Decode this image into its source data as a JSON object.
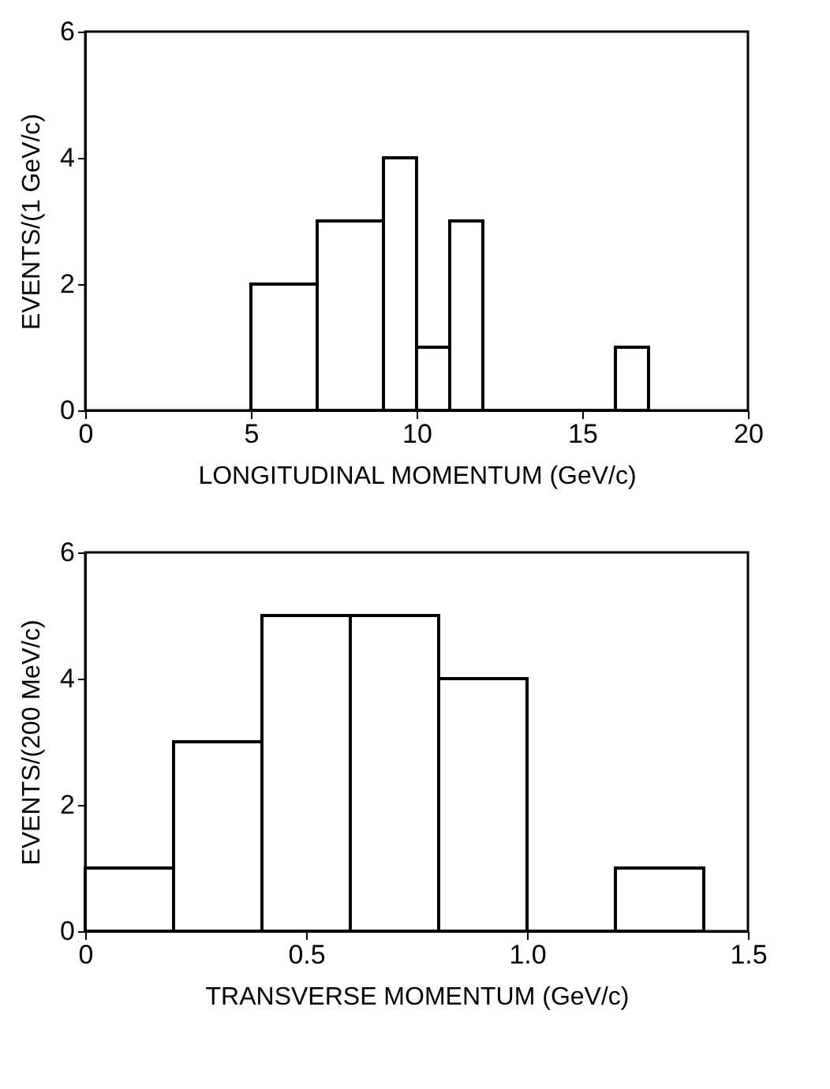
{
  "chart_data": [
    {
      "type": "histogram",
      "xlabel": "LONGITUDINAL  MOMENTUM   (GeV/c)",
      "ylabel": "EVENTS/(1 GeV/c)",
      "bins": [
        5,
        7,
        9,
        10,
        11,
        12,
        16,
        17
      ],
      "values": [
        2,
        3,
        4,
        1,
        3,
        0,
        1
      ],
      "color": "#000000",
      "xlim": [
        0,
        20
      ],
      "xticks": [
        0,
        5,
        10,
        15,
        20
      ],
      "ylim": [
        0,
        6
      ],
      "yticks": [
        0,
        2,
        4,
        6
      ],
      "grid": false
    },
    {
      "type": "histogram",
      "xlabel": "TRANSVERSE  MOMENTUM   (GeV/c)",
      "ylabel": "EVENTS/(200 MeV/c)",
      "bins": [
        0,
        0.2,
        0.4,
        0.6,
        0.8,
        1.0,
        1.2,
        1.4
      ],
      "values": [
        1,
        3,
        5,
        5,
        4,
        0,
        1
      ],
      "color": "#000000",
      "xlim": [
        0,
        1.5
      ],
      "xticks": [
        0,
        0.5,
        {
          "value": 1,
          "label": "1.0"
        },
        1.5
      ],
      "ylim": [
        0,
        6
      ],
      "yticks": [
        0,
        2,
        4,
        6
      ],
      "grid": false
    }
  ]
}
